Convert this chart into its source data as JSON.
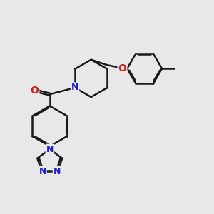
{
  "bg_color": "#e8e8e8",
  "bond_color": "#1a1a1a",
  "n_color": "#2020cc",
  "o_color": "#cc2020",
  "line_width": 1.8,
  "font_size_atom": 9,
  "fig_width": 3.0,
  "fig_height": 3.0,
  "dpi": 100,
  "xlim": [
    0,
    10
  ],
  "ylim": [
    0,
    10
  ]
}
